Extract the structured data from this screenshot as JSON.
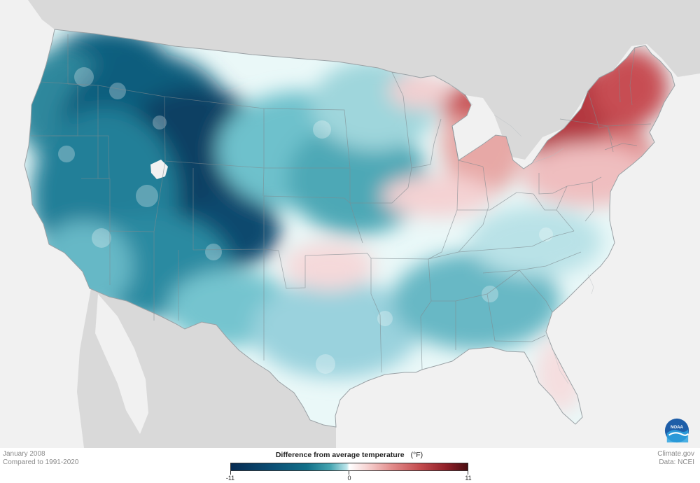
{
  "caption": {
    "month": "January 2008",
    "baseline": "Compared to 1991-2020"
  },
  "credits": {
    "site": "Climate.gov",
    "data": "Data: NCEI"
  },
  "legend": {
    "title": "Difference from average temperature",
    "unit": "(°F)",
    "min_label": "-11",
    "mid_label": "0",
    "max_label": "11",
    "min_value": -11,
    "mid_value": 0,
    "max_value": 11,
    "colors": {
      "cold_extreme": "#062b52",
      "cold_mid": "#116f88",
      "neutral": "#ffffff",
      "warm_mid": "#e28c8b",
      "warm_extreme": "#4a0d12"
    }
  },
  "map": {
    "background_land": "#d9d9d9",
    "background_water": "#f1f1f1",
    "highlight_color": "#ffffff"
  },
  "logo": {
    "text": "NOAA",
    "icon": "noaa-logo"
  }
}
